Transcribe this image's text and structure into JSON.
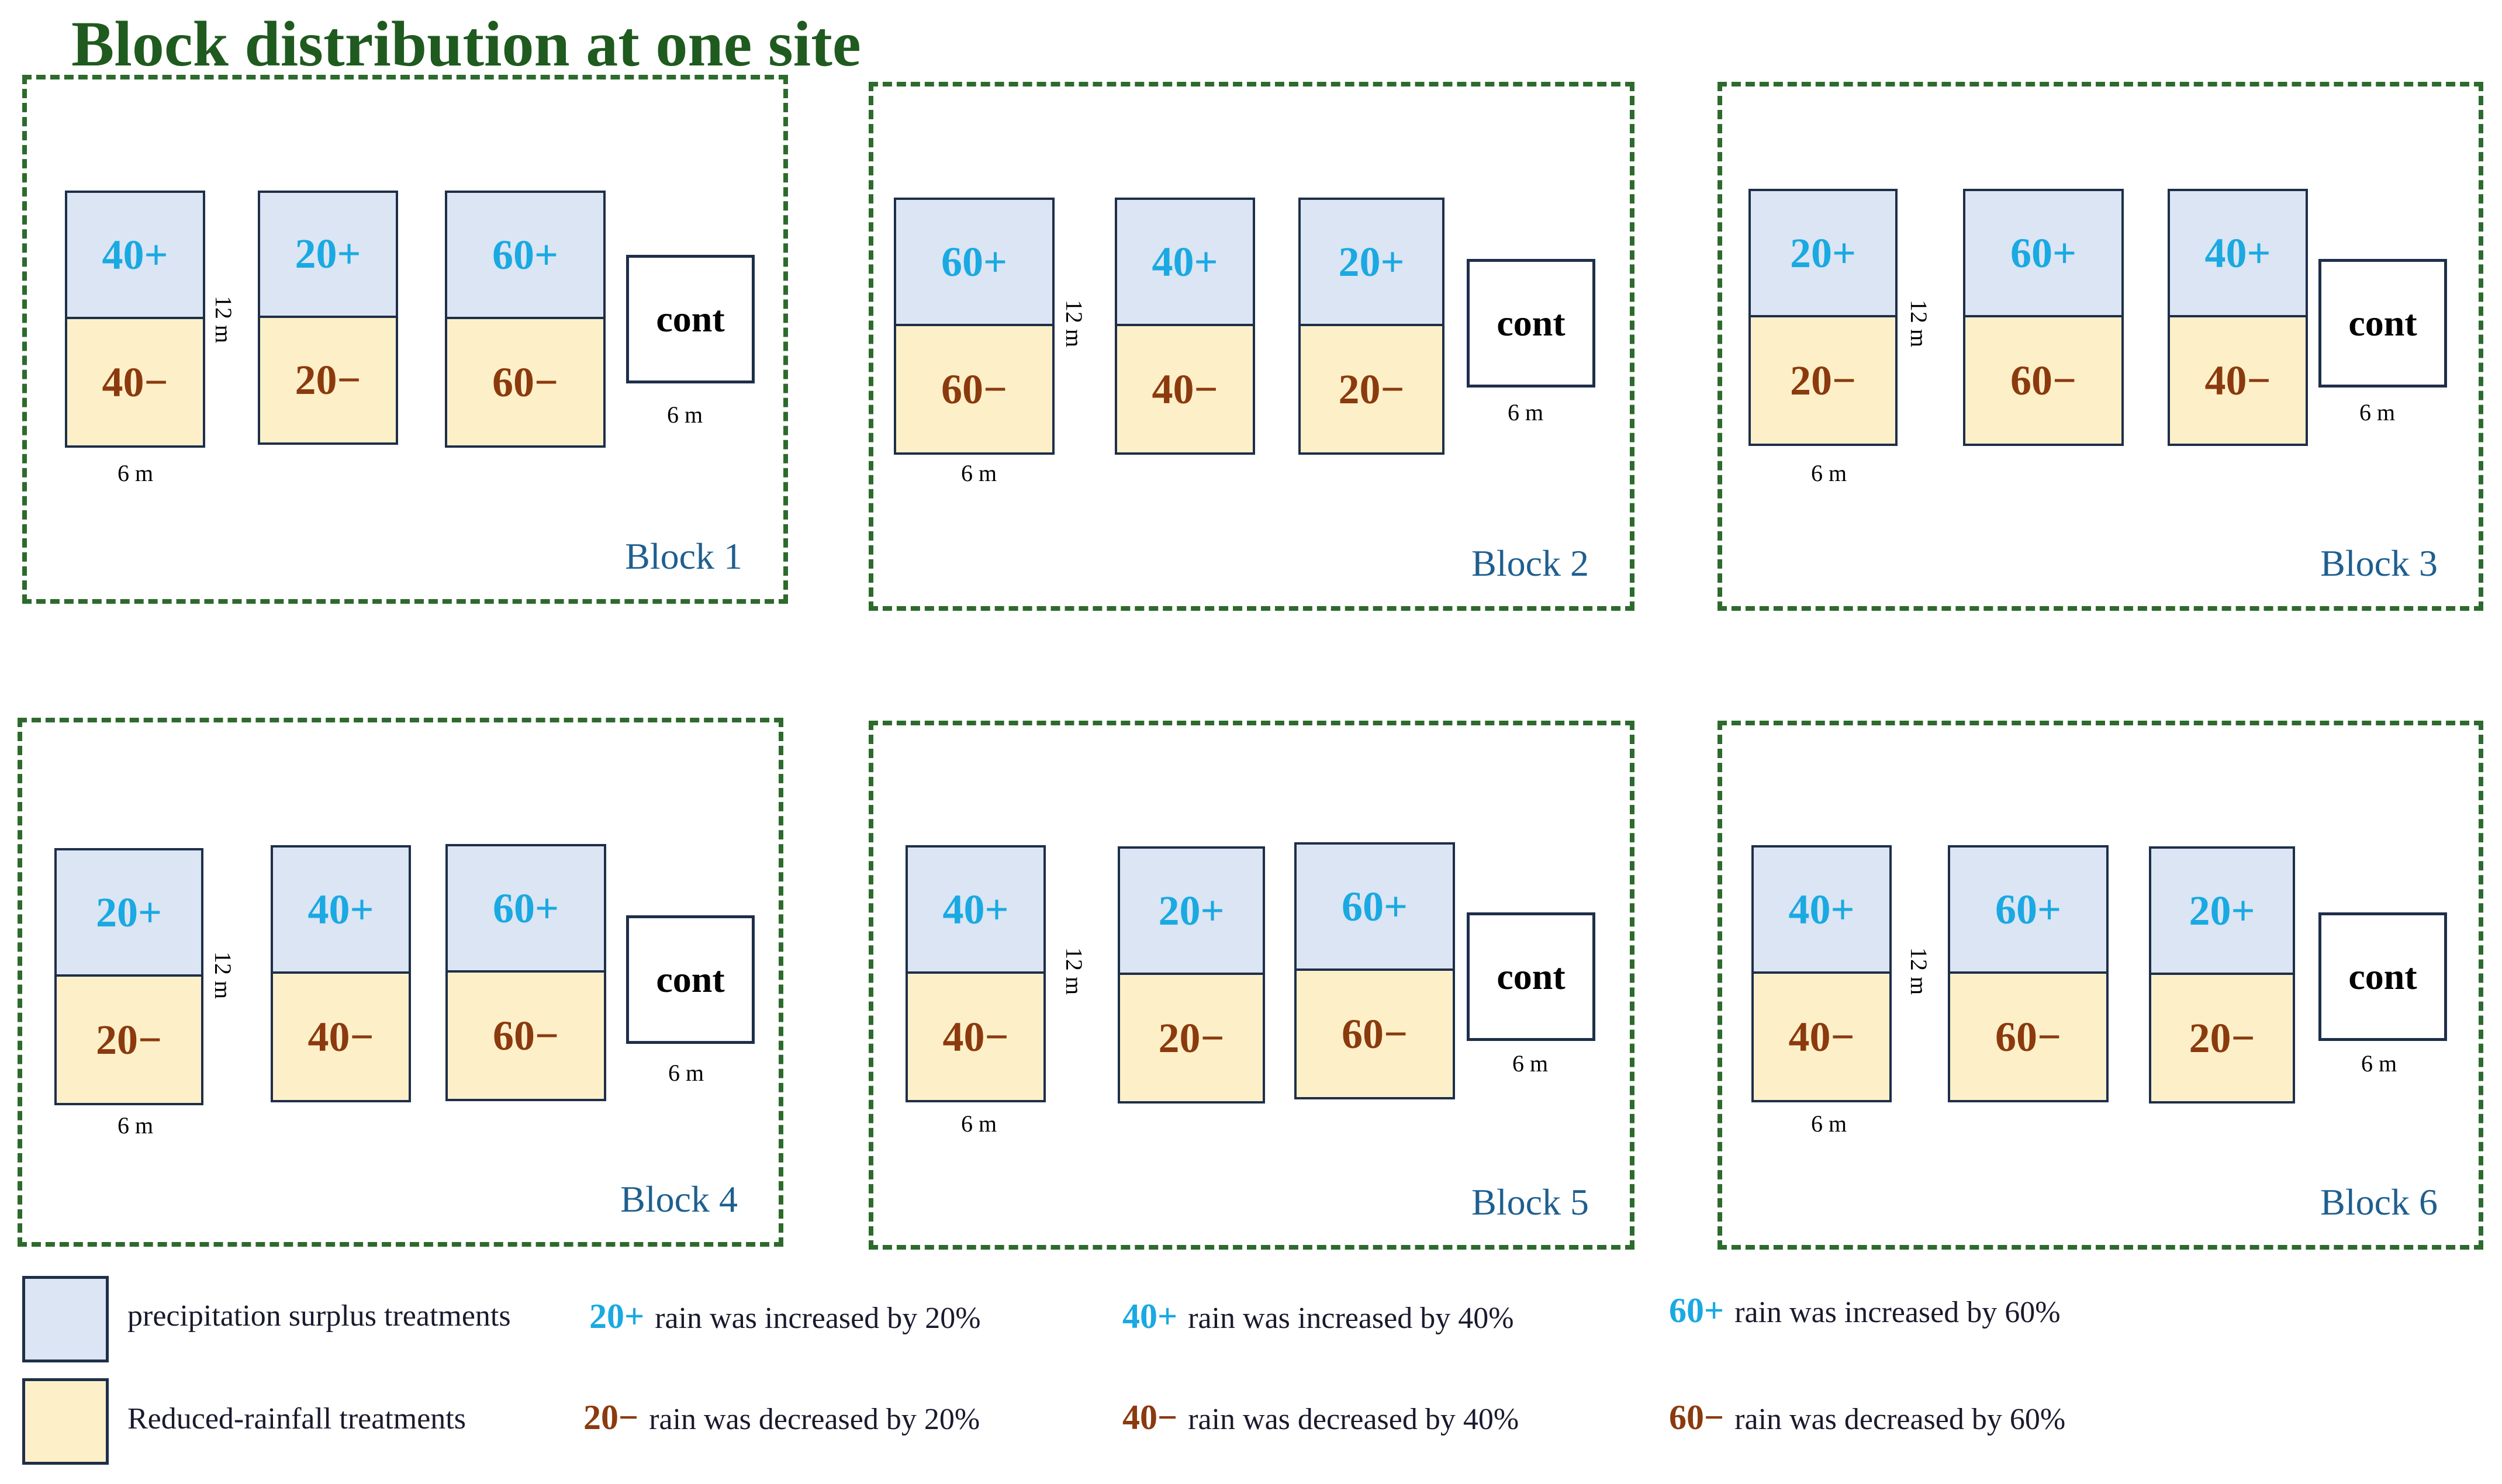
{
  "title": "Block distribution at one site",
  "dimensions": {
    "width": "6 m",
    "height": "12 m"
  },
  "control_label": "cont",
  "blocks": [
    {
      "label": "Block 1",
      "plots": [
        {
          "top": "40+",
          "bottom": "40−"
        },
        {
          "top": "20+",
          "bottom": "20−"
        },
        {
          "top": "60+",
          "bottom": "60−"
        }
      ]
    },
    {
      "label": "Block 2",
      "plots": [
        {
          "top": "60+",
          "bottom": "60−"
        },
        {
          "top": "40+",
          "bottom": "40−"
        },
        {
          "top": "20+",
          "bottom": "20−"
        }
      ]
    },
    {
      "label": "Block 3",
      "plots": [
        {
          "top": "20+",
          "bottom": "20−"
        },
        {
          "top": "60+",
          "bottom": "60−"
        },
        {
          "top": "40+",
          "bottom": "40−"
        }
      ]
    },
    {
      "label": "Block 4",
      "plots": [
        {
          "top": "20+",
          "bottom": "20−"
        },
        {
          "top": "40+",
          "bottom": "40−"
        },
        {
          "top": "60+",
          "bottom": "60−"
        }
      ]
    },
    {
      "label": "Block 5",
      "plots": [
        {
          "top": "40+",
          "bottom": "40−"
        },
        {
          "top": "20+",
          "bottom": "20−"
        },
        {
          "top": "60+",
          "bottom": "60−"
        }
      ]
    },
    {
      "label": "Block 6",
      "plots": [
        {
          "top": "40+",
          "bottom": "40−"
        },
        {
          "top": "60+",
          "bottom": "60−"
        },
        {
          "top": "20+",
          "bottom": "20−"
        }
      ]
    }
  ],
  "legend": {
    "surplus_label": "precipitation surplus treatments",
    "reduced_label": "Reduced-rainfall treatments",
    "items": [
      {
        "code": "20+",
        "text": "rain was increased by 20%"
      },
      {
        "code": "40+",
        "text": "rain was increased by 40%"
      },
      {
        "code": "60+",
        "text": "rain was increased by 60%"
      },
      {
        "code": "20−",
        "text": "rain was decreased by 20%"
      },
      {
        "code": "40−",
        "text": "rain was decreased by 40%"
      },
      {
        "code": "60−",
        "text": "rain was decreased by 60%"
      }
    ]
  },
  "colors": {
    "surplus_fill": "#dbe5f3",
    "reduced_fill": "#fdf0c9",
    "plus_text": "#1aa9e2",
    "minus_text": "#8b3a0e",
    "block_border": "#2d6a2d",
    "block_label": "#1f5f8f"
  }
}
